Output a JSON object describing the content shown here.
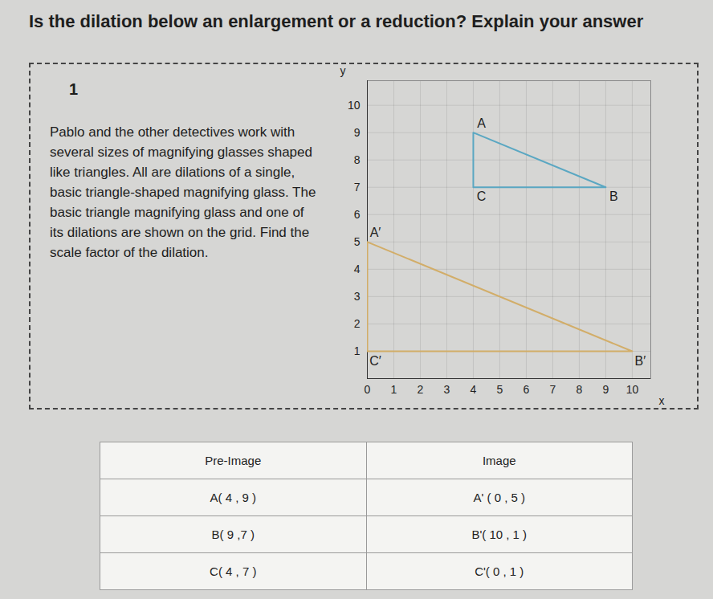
{
  "question": "Is the dilation below an enlargement or a reduction? Explain your answer",
  "problem": {
    "number": "1",
    "text": "Pablo and the other detectives work with several sizes of magnifying glasses shaped like triangles. All are dilations of a single, basic triangle-shaped magnifying glass. The basic triangle magnifying glass and one of its dilations are shown on the grid. Find the scale factor of the dilation."
  },
  "chart_data": {
    "type": "line",
    "x_label": "x",
    "y_label": "y",
    "xlim": [
      0,
      10.7
    ],
    "ylim": [
      0,
      10.9
    ],
    "xticks": [
      0,
      1,
      2,
      3,
      4,
      5,
      6,
      7,
      8,
      9,
      10
    ],
    "yticks": [
      1,
      2,
      3,
      4,
      5,
      6,
      7,
      8,
      9,
      10
    ],
    "grid": true,
    "series": [
      {
        "labels": [
          "A",
          "B",
          "C"
        ],
        "x": [
          4,
          9,
          4
        ],
        "values": [
          9,
          7,
          7
        ],
        "color": "#5aa7c2"
      },
      {
        "labels": [
          "A′",
          "B′",
          "C′"
        ],
        "x": [
          0,
          10,
          0
        ],
        "values": [
          5,
          1,
          1
        ],
        "color": "#d2ad68"
      }
    ]
  },
  "table": {
    "header": [
      "Pre-Image",
      "Image"
    ],
    "rows": [
      [
        "A( 4 , 9 )",
        "A' ( 0 , 5 )"
      ],
      [
        "B( 9 ,7 )",
        "B'( 10 , 1 )"
      ],
      [
        "C( 4 , 7 )",
        "C'( 0 , 1 )"
      ]
    ]
  }
}
